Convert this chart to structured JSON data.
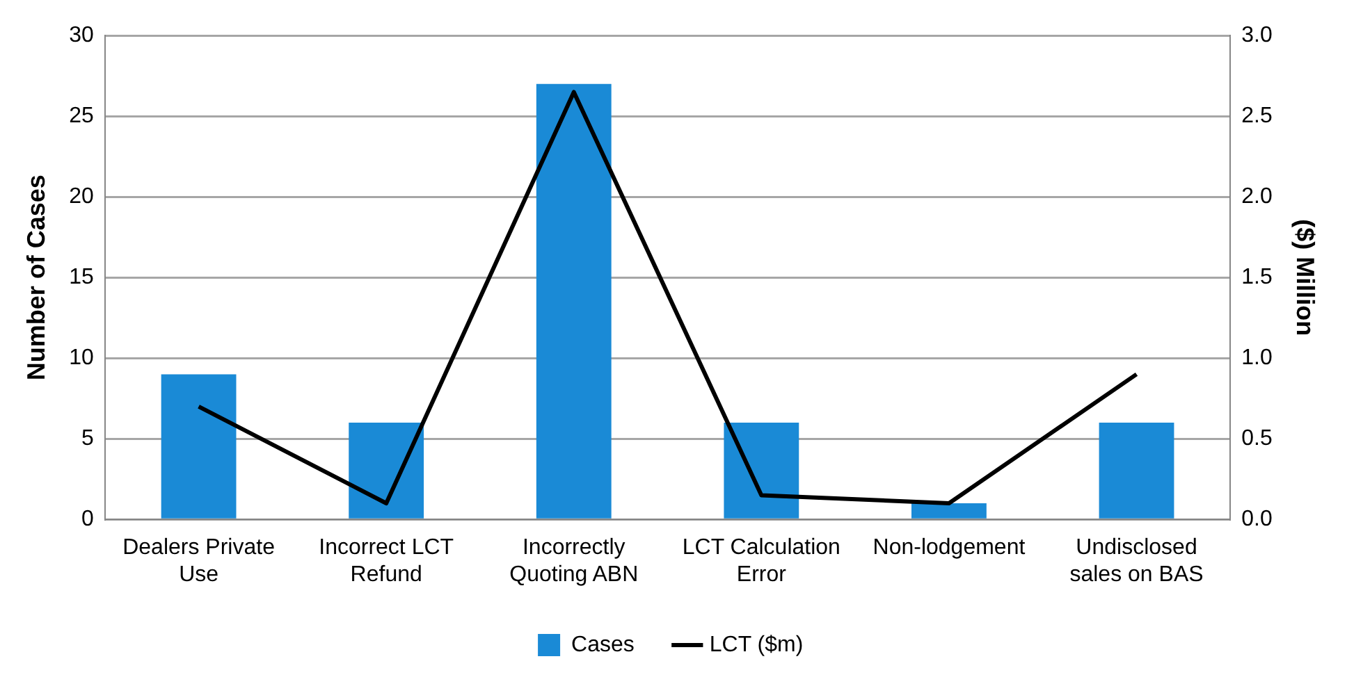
{
  "chart_data": {
    "type": "bar",
    "categories": [
      "Dealers Private Use",
      "Incorrect LCT Refund",
      "Incorrectly Quoting ABN",
      "LCT Calculation Error",
      "Non-lodgement",
      "Undisclosed sales on BAS"
    ],
    "series": [
      {
        "name": "Cases",
        "color": "#1a8ad6",
        "values": [
          9,
          6,
          27,
          6,
          1,
          6
        ]
      },
      {
        "name": "LCT ($m)",
        "type": "line",
        "axis": "y2",
        "color": "#000000",
        "values": [
          0.7,
          0.1,
          2.65,
          0.15,
          0.1,
          0.9
        ]
      }
    ],
    "ylabel": "Number of Cases",
    "y2label": "($) Million",
    "ylim": [
      0,
      30
    ],
    "yticks": [
      0,
      5,
      10,
      15,
      20,
      25,
      30
    ],
    "y2lim": [
      0,
      3
    ],
    "y2ticks": [
      {
        "value": 0,
        "label": "0.0"
      },
      {
        "value": 0.5,
        "label": "0.5"
      },
      {
        "value": 1,
        "label": "1.0"
      },
      {
        "value": 1.5,
        "label": "1.5"
      },
      {
        "value": 2,
        "label": "2.0"
      },
      {
        "value": 2.5,
        "label": "2.5"
      },
      {
        "value": 3,
        "label": "3.0"
      }
    ],
    "grid": "y",
    "legend": "bottom",
    "marker": "none",
    "line_style": "solid"
  }
}
